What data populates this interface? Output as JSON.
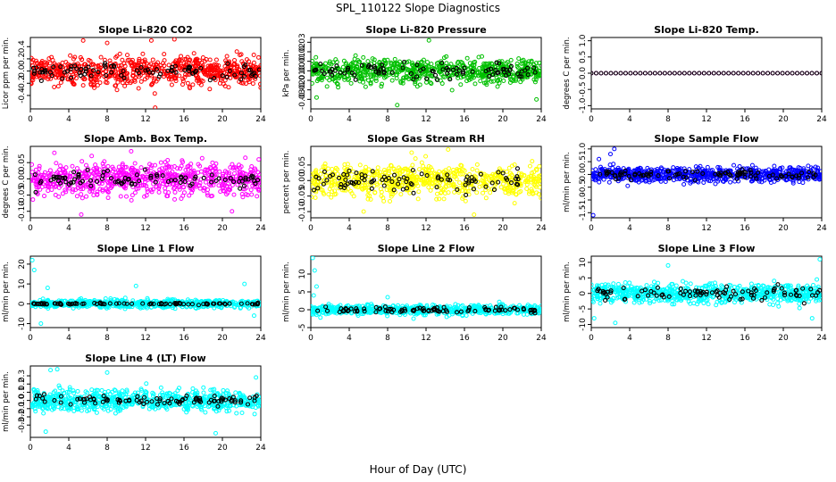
{
  "figure": {
    "title": "SPL_110122  Slope Diagnostics",
    "xlabel": "Hour of Day (UTC)"
  },
  "chart_data": [
    {
      "type": "scatter",
      "title": "Slope Li-820 CO2",
      "ylabel": "Licor ppm per min.",
      "color": "#ff0000",
      "xlim": [
        0,
        24
      ],
      "xticks": [
        0,
        4,
        8,
        12,
        16,
        20,
        24
      ],
      "ylim": [
        -0.62,
        0.55
      ],
      "yticks": [
        -0.4,
        -0.2,
        0.0,
        0.2,
        0.4
      ],
      "ytick_labels": [
        "-0.4",
        "-0.2",
        "0.0",
        "0.2",
        "0.4"
      ],
      "spread": 0.17,
      "hourly_spread": 0.1,
      "n_colored": 700,
      "outliers": [
        [
          5.5,
          0.5
        ],
        [
          8,
          0.46
        ],
        [
          13,
          -0.6
        ],
        [
          15,
          0.52
        ],
        [
          12.6,
          0.5
        ]
      ]
    },
    {
      "type": "scatter",
      "title": "Slope Li-820 Pressure",
      "ylabel": "kPa per min.",
      "color": "#00c000",
      "xlim": [
        0,
        24
      ],
      "xticks": [
        0,
        4,
        8,
        12,
        16,
        20,
        24
      ],
      "ylim": [
        -0.04,
        0.035
      ],
      "yticks": [
        -0.03,
        -0.02,
        -0.01,
        0.0,
        0.01,
        0.02,
        0.03
      ],
      "ytick_labels": [
        "-0.03",
        "-0.02",
        "-0.01",
        "0.00",
        "0.01",
        "0.02",
        "0.03"
      ],
      "spread": 0.009,
      "hourly_spread": 0.006,
      "n_colored": 700,
      "outliers": [
        [
          12.3,
          0.032
        ],
        [
          9,
          -0.036
        ],
        [
          23.5,
          -0.03
        ],
        [
          0.6,
          -0.028
        ]
      ]
    },
    {
      "type": "scatter",
      "title": "Slope Li-820 Temp.",
      "ylabel": "degrees C per min.",
      "color": "#ff00ff",
      "xlim": [
        0,
        24
      ],
      "xticks": [
        0,
        4,
        8,
        12,
        16,
        20,
        24
      ],
      "ylim": [
        -1.1,
        1.1
      ],
      "yticks": [
        -1.0,
        -0.5,
        0.0,
        0.5,
        1.0
      ],
      "ytick_labels": [
        "-1.0",
        "-0.5",
        "0.0",
        "0.5",
        "1.0"
      ],
      "spread": 0.0,
      "hourly_spread": 0.0,
      "n_colored": 48,
      "outliers": []
    },
    {
      "type": "scatter",
      "title": "Slope Amb. Box Temp.",
      "ylabel": "degrees C per min.",
      "color": "#ff00ff",
      "xlim": [
        0,
        24
      ],
      "xticks": [
        0,
        4,
        8,
        12,
        16,
        20,
        24
      ],
      "ylim": [
        -0.12,
        0.1
      ],
      "yticks": [
        -0.1,
        -0.05,
        0.0,
        0.05
      ],
      "ytick_labels": [
        "-0.10",
        "-0.05",
        "0.00",
        "0.05"
      ],
      "spread": 0.035,
      "hourly_spread": 0.02,
      "n_colored": 700,
      "outliers": [
        [
          2.5,
          0.08
        ],
        [
          10.5,
          0.085
        ],
        [
          5.3,
          -0.11
        ],
        [
          21,
          -0.1
        ]
      ]
    },
    {
      "type": "scatter",
      "title": "Slope Gas Stream RH",
      "ylabel": "percent per min.",
      "color": "#ffff00",
      "xlim": [
        0,
        24
      ],
      "xticks": [
        0,
        4,
        8,
        12,
        16,
        20,
        24
      ],
      "ylim": [
        -0.12,
        0.11
      ],
      "yticks": [
        -0.1,
        -0.05,
        0.0,
        0.05
      ],
      "ytick_labels": [
        "-0.10",
        "-0.05",
        "0.00",
        "0.05"
      ],
      "spread": 0.035,
      "hourly_spread": 0.025,
      "n_colored": 700,
      "outliers": [
        [
          10.5,
          0.09
        ],
        [
          14.3,
          0.1
        ],
        [
          5.5,
          -0.1
        ],
        [
          17,
          -0.11
        ]
      ]
    },
    {
      "type": "scatter",
      "title": "Slope Sample Flow",
      "ylabel": "ml/min per min.",
      "color": "#0000ff",
      "xlim": [
        0,
        24
      ],
      "xticks": [
        0,
        4,
        8,
        12,
        16,
        20,
        24
      ],
      "ylim": [
        -1.7,
        1.1
      ],
      "yticks": [
        -1.5,
        -1.0,
        -0.5,
        0.0,
        0.5,
        1.0
      ],
      "ytick_labels": [
        "-1.5",
        "-1.0",
        "-0.5",
        "0.0",
        "0.5",
        "1.0"
      ],
      "spread": 0.2,
      "hourly_spread": 0.12,
      "n_colored": 700,
      "outliers": [
        [
          0.2,
          -1.6
        ],
        [
          2.4,
          1.0
        ],
        [
          2,
          0.8
        ],
        [
          0.8,
          0.6
        ]
      ]
    },
    {
      "type": "scatter",
      "title": "Slope Line 1 Flow",
      "ylabel": "ml/min per min.",
      "color": "#00ffff",
      "xlim": [
        0,
        24
      ],
      "xticks": [
        0,
        4,
        8,
        12,
        16,
        20,
        24
      ],
      "ylim": [
        -12,
        24
      ],
      "yticks": [
        -10,
        0,
        10,
        20
      ],
      "ytick_labels": [
        "-10",
        "0",
        "10",
        "20"
      ],
      "spread": 1.4,
      "hourly_spread": 0.3,
      "n_colored": 700,
      "outliers": [
        [
          0.2,
          22
        ],
        [
          0.4,
          17
        ],
        [
          1.1,
          -10
        ],
        [
          1.8,
          8
        ],
        [
          11,
          9
        ],
        [
          22.3,
          10
        ],
        [
          23.3,
          -6
        ]
      ]
    },
    {
      "type": "scatter",
      "title": "Slope Line 2 Flow",
      "ylabel": "ml/min per min.",
      "color": "#00ffff",
      "xlim": [
        0,
        24
      ],
      "xticks": [
        0,
        4,
        8,
        12,
        16,
        20,
        24
      ],
      "ylim": [
        -5,
        15
      ],
      "yticks": [
        -5,
        0,
        5,
        10
      ],
      "ytick_labels": [
        "-5",
        "0",
        "5",
        "10"
      ],
      "spread": 0.9,
      "hourly_spread": 0.6,
      "n_colored": 700,
      "outliers": [
        [
          0.2,
          14.5
        ],
        [
          0.4,
          11
        ],
        [
          0.6,
          6.5
        ],
        [
          0.3,
          4
        ],
        [
          1,
          -2.2
        ],
        [
          8,
          3.5
        ],
        [
          10.7,
          -2.5
        ]
      ]
    },
    {
      "type": "scatter",
      "title": "Slope Line 3 Flow",
      "ylabel": "ml/min per min.",
      "color": "#00ffff",
      "xlim": [
        0,
        24
      ],
      "xticks": [
        0,
        4,
        8,
        12,
        16,
        20,
        24
      ],
      "ylim": [
        -11,
        12
      ],
      "yticks": [
        -10,
        -5,
        0,
        5,
        10
      ],
      "ytick_labels": [
        "-10",
        "-5",
        "0",
        "5",
        "10"
      ],
      "spread": 2.2,
      "hourly_spread": 1.6,
      "n_colored": 700,
      "outliers": [
        [
          0.3,
          -8
        ],
        [
          23.8,
          11
        ],
        [
          8,
          9
        ],
        [
          2.5,
          -9.5
        ],
        [
          23,
          -8
        ]
      ]
    },
    {
      "type": "scatter",
      "title": "Slope Line 4 (LT) Flow",
      "ylabel": "ml/min per min.",
      "color": "#00ffff",
      "xlim": [
        0,
        24
      ],
      "xticks": [
        0,
        4,
        8,
        12,
        16,
        20,
        24
      ],
      "ylim": [
        -0.45,
        0.42
      ],
      "yticks": [
        -0.3,
        -0.2,
        -0.1,
        0.0,
        0.1,
        0.2,
        0.3
      ],
      "ytick_labels": [
        "-0.3",
        "-0.2",
        "-0.1",
        "0.0",
        "0.1",
        "0.2",
        "0.3"
      ],
      "spread": 0.09,
      "hourly_spread": 0.05,
      "n_colored": 700,
      "outliers": [
        [
          2.1,
          0.37
        ],
        [
          2.8,
          0.38
        ],
        [
          1.6,
          -0.38
        ],
        [
          8,
          0.34
        ],
        [
          19.3,
          -0.4
        ],
        [
          23.5,
          0.28
        ]
      ]
    }
  ]
}
